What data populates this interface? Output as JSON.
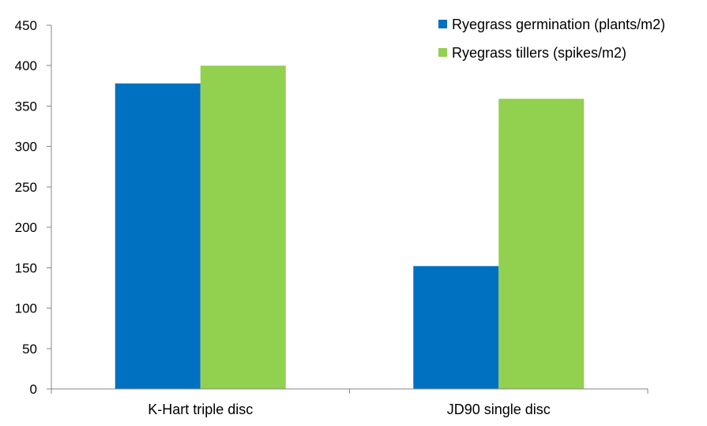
{
  "chart_data": {
    "type": "bar",
    "title": "",
    "xlabel": "",
    "ylabel": "",
    "categories": [
      "K-Hart triple disc",
      "JD90 single disc"
    ],
    "series": [
      {
        "name": "Ryegrass germination (plants/m2)",
        "values": [
          378,
          152
        ],
        "color": "#0070C0"
      },
      {
        "name": "Ryegrass tillers (spikes/m2)",
        "values": [
          400,
          359
        ],
        "color": "#92D050"
      }
    ],
    "ylim": [
      0,
      450
    ],
    "yticks": [
      0,
      50,
      100,
      150,
      200,
      250,
      300,
      350,
      400,
      450
    ],
    "grid": false,
    "legend": "top-right"
  }
}
